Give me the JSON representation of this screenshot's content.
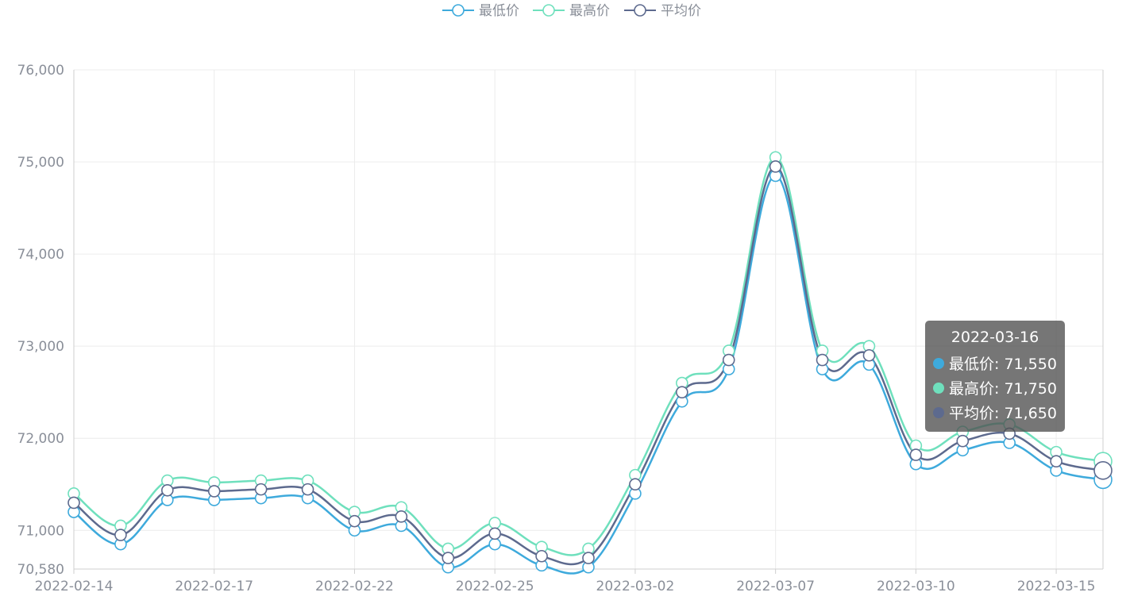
{
  "chart_data": {
    "type": "line",
    "title": "",
    "xlabel": "",
    "ylabel": "",
    "smooth": true,
    "ylim": [
      70580,
      76000
    ],
    "y_ticks": [
      70580,
      71000,
      72000,
      73000,
      74000,
      75000,
      76000
    ],
    "y_tick_labels": [
      "70,580",
      "71,000",
      "72,000",
      "73,000",
      "74,000",
      "75,000",
      "76,000"
    ],
    "x_tick_labels": [
      "2022-02-14",
      "2022-02-17",
      "2022-02-22",
      "2022-02-25",
      "2022-03-02",
      "2022-03-07",
      "2022-03-10",
      "2022-03-15"
    ],
    "x_tick_every": 3,
    "grid": true,
    "legend_position": "top-center",
    "categories": [
      "2022-02-14",
      "2022-02-15",
      "2022-02-16",
      "2022-02-17",
      "2022-02-18",
      "2022-02-21",
      "2022-02-22",
      "2022-02-23",
      "2022-02-24",
      "2022-02-25",
      "2022-02-28",
      "2022-03-01",
      "2022-03-02",
      "2022-03-03",
      "2022-03-04",
      "2022-03-07",
      "2022-03-08",
      "2022-03-09",
      "2022-03-10",
      "2022-03-11",
      "2022-03-14",
      "2022-03-15",
      "2022-03-16"
    ],
    "series": [
      {
        "name": "最低价",
        "color": "#3eaadc",
        "values": [
          71200,
          70850,
          71330,
          71330,
          71350,
          71350,
          71000,
          71050,
          70600,
          70850,
          70620,
          70600,
          71400,
          72400,
          72750,
          74850,
          72750,
          72800,
          71720,
          71870,
          71950,
          71650,
          71550
        ]
      },
      {
        "name": "最高价",
        "color": "#6fe0bd",
        "values": [
          71400,
          71050,
          71540,
          71520,
          71540,
          71540,
          71200,
          71250,
          70800,
          71080,
          70820,
          70800,
          71600,
          72600,
          72950,
          75050,
          72950,
          73000,
          71920,
          72070,
          72150,
          71850,
          71750
        ]
      },
      {
        "name": "平均价",
        "color": "#5d6a8e",
        "values": [
          71300,
          70950,
          71435,
          71425,
          71445,
          71445,
          71100,
          71150,
          70700,
          70965,
          70720,
          70700,
          71500,
          72500,
          72850,
          74950,
          72850,
          72900,
          71820,
          71970,
          72050,
          71750,
          71650
        ]
      }
    ],
    "tooltip": {
      "title": "2022-03-16",
      "rows": [
        {
          "label": "最低价: 71,550",
          "color": "#3eaadc"
        },
        {
          "label": "最高价: 71,750",
          "color": "#6fe0bd"
        },
        {
          "label": "平均价: 71,650",
          "color": "#5d6a8e"
        }
      ]
    }
  }
}
